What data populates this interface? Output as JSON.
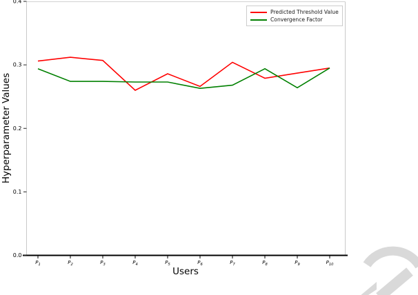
{
  "figure": {
    "xlabel": "Users",
    "ylabel": "Hyperparameter Values"
  },
  "legend": {
    "position": "upper right",
    "items": [
      {
        "label": "Predicted Threshold Value",
        "color": "#ff0000"
      },
      {
        "label": "Convergence Factor",
        "color": "#008000"
      }
    ]
  },
  "watermark": {
    "description": "partial-diagonal-letters-fragment",
    "color": "#d9d9d9"
  },
  "chart_data": {
    "type": "line",
    "title": "",
    "xlabel": "Users",
    "ylabel": "Hyperparameter Values",
    "categories": [
      "P1",
      "P2",
      "P3",
      "P4",
      "P5",
      "P6",
      "P7",
      "P8",
      "P9",
      "P10"
    ],
    "x_tick_style": "italic P with numeric subscript",
    "ylim": [
      0.0,
      0.4
    ],
    "yticks": [
      0.0,
      0.1,
      0.2,
      0.3,
      0.4
    ],
    "ytick_labels": [
      "0.0",
      "0.1",
      "0.2",
      "0.3",
      "0.4"
    ],
    "grid": false,
    "legend_position": "upper right",
    "series": [
      {
        "name": "Predicted Threshold Value",
        "color": "#ff0000",
        "values": [
          0.306,
          0.312,
          0.307,
          0.26,
          0.286,
          0.266,
          0.304,
          0.279,
          0.287,
          0.295
        ]
      },
      {
        "name": "Convergence Factor",
        "color": "#008000",
        "values": [
          0.294,
          0.274,
          0.274,
          0.273,
          0.273,
          0.263,
          0.268,
          0.294,
          0.264,
          0.295
        ]
      }
    ]
  }
}
